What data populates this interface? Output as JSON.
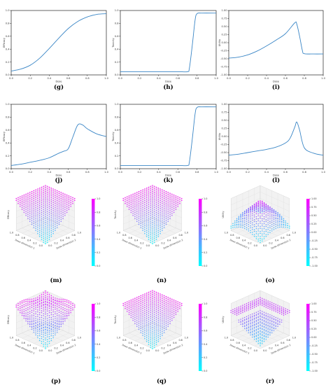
{
  "chart_data": [
    {
      "id": "g",
      "type": "line",
      "caption": "(g)",
      "xlabel": "Dose",
      "ylabel": "Efficacy",
      "xlim": [
        0,
        1
      ],
      "ylim": [
        0,
        1
      ],
      "xticks": [
        "0.0",
        "0.2",
        "0.4",
        "0.6",
        "0.8",
        "1.0"
      ],
      "yticks": [
        "0.0",
        "0.2",
        "0.4",
        "0.6",
        "0.8",
        "1.0"
      ],
      "x": [
        0.0,
        0.1,
        0.2,
        0.3,
        0.4,
        0.5,
        0.6,
        0.7,
        0.8,
        0.9,
        1.0
      ],
      "y": [
        0.06,
        0.09,
        0.15,
        0.26,
        0.41,
        0.57,
        0.72,
        0.83,
        0.9,
        0.94,
        0.95
      ]
    },
    {
      "id": "h",
      "type": "line",
      "caption": "(h)",
      "xlabel": "Dose",
      "ylabel": "Toxicity",
      "xlim": [
        0,
        1
      ],
      "ylim": [
        0,
        1
      ],
      "xticks": [
        "0.0",
        "0.2",
        "0.4",
        "0.6",
        "0.8",
        "1.0"
      ],
      "yticks": [
        "0.0",
        "0.2",
        "0.4",
        "0.6",
        "0.8",
        "1.0"
      ],
      "x": [
        0.0,
        0.2,
        0.4,
        0.6,
        0.7,
        0.72,
        0.75,
        0.78,
        0.8,
        0.85,
        1.0
      ],
      "y": [
        0.05,
        0.05,
        0.05,
        0.05,
        0.05,
        0.1,
        0.45,
        0.85,
        0.95,
        0.96,
        0.96
      ]
    },
    {
      "id": "i",
      "type": "line",
      "caption": "(i)",
      "xlabel": "Dose",
      "ylabel": "Utility",
      "xlim": [
        0,
        1
      ],
      "ylim": [
        -1,
        1
      ],
      "xticks": [
        "0.0",
        "0.2",
        "0.4",
        "0.6",
        "0.8",
        "1.0"
      ],
      "yticks": [
        "-1.00",
        "-0.75",
        "-0.50",
        "-0.25",
        "0.00",
        "0.25",
        "0.50",
        "0.75",
        "1.00"
      ],
      "x": [
        0.0,
        0.1,
        0.2,
        0.3,
        0.4,
        0.5,
        0.6,
        0.7,
        0.72,
        0.75,
        0.78,
        0.8,
        0.9,
        1.0
      ],
      "y": [
        -0.48,
        -0.45,
        -0.38,
        -0.26,
        -0.1,
        0.08,
        0.28,
        0.62,
        0.58,
        0.2,
        -0.25,
        -0.34,
        -0.35,
        -0.35
      ]
    },
    {
      "id": "j",
      "type": "line",
      "caption": "(j)",
      "xlabel": "Dose",
      "ylabel": "Efficacy",
      "xlim": [
        0,
        1
      ],
      "ylim": [
        0,
        1
      ],
      "xticks": [
        "0.0",
        "0.2",
        "0.4",
        "0.6",
        "0.8",
        "1.0"
      ],
      "yticks": [
        "0.0",
        "0.2",
        "0.4",
        "0.6",
        "0.8",
        "1.0"
      ],
      "x": [
        0.0,
        0.1,
        0.2,
        0.3,
        0.4,
        0.5,
        0.55,
        0.6,
        0.65,
        0.7,
        0.75,
        0.8,
        0.9,
        1.0
      ],
      "y": [
        0.05,
        0.07,
        0.1,
        0.13,
        0.17,
        0.24,
        0.27,
        0.31,
        0.5,
        0.68,
        0.68,
        0.62,
        0.54,
        0.5
      ]
    },
    {
      "id": "k",
      "type": "line",
      "caption": "(k)",
      "xlabel": "Dose",
      "ylabel": "Toxicity",
      "xlim": [
        0,
        1
      ],
      "ylim": [
        0,
        1
      ],
      "xticks": [
        "0.0",
        "0.2",
        "0.4",
        "0.6",
        "0.8",
        "1.0"
      ],
      "yticks": [
        "0.0",
        "0.2",
        "0.4",
        "0.6",
        "0.8",
        "1.0"
      ],
      "x": [
        0.0,
        0.2,
        0.4,
        0.6,
        0.7,
        0.72,
        0.75,
        0.78,
        0.8,
        0.85,
        1.0
      ],
      "y": [
        0.05,
        0.05,
        0.05,
        0.05,
        0.05,
        0.1,
        0.45,
        0.85,
        0.95,
        0.96,
        0.96
      ]
    },
    {
      "id": "l",
      "type": "line",
      "caption": "(l)",
      "xlabel": "Dose",
      "ylabel": "Utility",
      "xlim": [
        0,
        1
      ],
      "ylim": [
        -1,
        1
      ],
      "xticks": [
        "0.0",
        "0.2",
        "0.4",
        "0.6",
        "0.8",
        "1.0"
      ],
      "yticks": [
        "-1.00",
        "-0.75",
        "-0.50",
        "-0.25",
        "0.00",
        "0.25",
        "0.50",
        "0.75",
        "1.00"
      ],
      "x": [
        0.0,
        0.1,
        0.2,
        0.3,
        0.4,
        0.5,
        0.6,
        0.65,
        0.7,
        0.72,
        0.75,
        0.8,
        0.9,
        1.0
      ],
      "y": [
        -0.58,
        -0.55,
        -0.5,
        -0.45,
        -0.4,
        -0.33,
        -0.2,
        -0.05,
        0.3,
        0.45,
        0.2,
        -0.35,
        -0.52,
        -0.58
      ]
    },
    {
      "id": "m",
      "type": "scatter3d",
      "caption": "(m)",
      "zlabel": "Efficacy",
      "xlabel": "Dose dimension 1",
      "ylabel": "Dose dimension 2",
      "axis_ticks": [
        "0.0",
        "0.2",
        "0.4",
        "0.6",
        "0.8",
        "1.0"
      ],
      "zlim": [
        0,
        1
      ],
      "surface": "max",
      "colormap": [
        "#00ffff",
        "#ff00ff"
      ],
      "colorbar_ticks": [
        "0.0",
        "0.2",
        "0.4",
        "0.6",
        "0.8",
        "1.0"
      ]
    },
    {
      "id": "n",
      "type": "scatter3d",
      "caption": "(n)",
      "zlabel": "Toxicity",
      "xlabel": "Dose dimension 1",
      "ylabel": "Dose dimension 2",
      "axis_ticks": [
        "0.0",
        "0.2",
        "0.4",
        "0.6",
        "0.8",
        "1.0"
      ],
      "zlim": [
        0,
        1
      ],
      "surface": "max",
      "colormap": [
        "#00ffff",
        "#ff00ff"
      ],
      "colorbar_ticks": [
        "0.0",
        "0.2",
        "0.4",
        "0.6",
        "0.8",
        "1.0"
      ]
    },
    {
      "id": "o",
      "type": "scatter3d",
      "caption": "(o)",
      "zlabel": "Utility",
      "xlabel": "Dose dimension 1",
      "ylabel": "Dose dimension 2",
      "axis_ticks": [
        "0.0",
        "0.2",
        "0.4",
        "0.6",
        "0.8",
        "1.0"
      ],
      "zlim": [
        -1,
        1
      ],
      "surface": "bump",
      "colormap": [
        "#00ffff",
        "#ff00ff"
      ],
      "colorbar_ticks": [
        "-1.00",
        "-0.75",
        "-0.50",
        "-0.25",
        "0.00",
        "0.25",
        "0.50",
        "0.75",
        "1.00"
      ]
    },
    {
      "id": "p",
      "type": "scatter3d",
      "caption": "(p)",
      "zlabel": "Efficacy",
      "xlabel": "Dose dimension 1",
      "ylabel": "Dose dimension 2",
      "axis_ticks": [
        "0.0",
        "0.2",
        "0.4",
        "0.6",
        "0.8",
        "1.0"
      ],
      "zlim": [
        0,
        1
      ],
      "surface": "max-wavy",
      "colormap": [
        "#00ffff",
        "#ff00ff"
      ],
      "colorbar_ticks": [
        "0.0",
        "0.2",
        "0.4",
        "0.6",
        "0.8",
        "1.0"
      ]
    },
    {
      "id": "q",
      "type": "scatter3d",
      "caption": "(q)",
      "zlabel": "Toxicity",
      "xlabel": "Dose dimension 1",
      "ylabel": "Dose dimension 2",
      "axis_ticks": [
        "0.0",
        "0.2",
        "0.4",
        "0.6",
        "0.8",
        "1.0"
      ],
      "zlim": [
        0,
        1
      ],
      "surface": "max",
      "colormap": [
        "#00ffff",
        "#ff00ff"
      ],
      "colorbar_ticks": [
        "0.0",
        "0.2",
        "0.4",
        "0.6",
        "0.8",
        "1.0"
      ]
    },
    {
      "id": "r",
      "type": "scatter3d",
      "caption": "(r)",
      "zlabel": "Utility",
      "xlabel": "Dose dimension 1",
      "ylabel": "Dose dimension 2",
      "axis_ticks": [
        "0.0",
        "0.2",
        "0.4",
        "0.6",
        "0.8",
        "1.0"
      ],
      "zlim": [
        -1,
        1
      ],
      "surface": "bump-flat",
      "colormap": [
        "#00ffff",
        "#ff00ff"
      ],
      "colorbar_ticks": [
        "-1.00",
        "-0.75",
        "-0.50",
        "-0.25",
        "0.00",
        "0.25",
        "0.50",
        "0.75",
        "1.00"
      ]
    }
  ]
}
